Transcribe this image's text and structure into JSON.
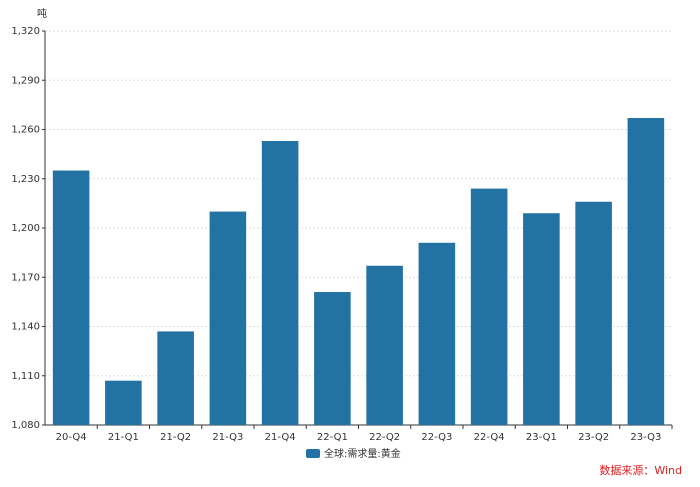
{
  "chart_data": {
    "type": "bar",
    "y_label": "吨",
    "categories": [
      "20-Q4",
      "21-Q1",
      "21-Q2",
      "21-Q3",
      "21-Q4",
      "22-Q1",
      "22-Q2",
      "22-Q3",
      "22-Q4",
      "23-Q1",
      "23-Q2",
      "23-Q3"
    ],
    "series": [
      {
        "name": "全球:需求量:黄金",
        "color": "#2273a3",
        "values": [
          1235,
          1107,
          1137,
          1210,
          1253,
          1161,
          1177,
          1191,
          1224,
          1209,
          1216,
          1267
        ]
      }
    ],
    "ylim": [
      1080,
      1320
    ],
    "yticks": [
      {
        "value": 1080,
        "label": "1,080"
      },
      {
        "value": 1110,
        "label": "1,110"
      },
      {
        "value": 1140,
        "label": "1,140"
      },
      {
        "value": 1170,
        "label": "1,170"
      },
      {
        "value": 1200,
        "label": "1,200"
      },
      {
        "value": 1230,
        "label": "1,230"
      },
      {
        "value": 1260,
        "label": "1,260"
      },
      {
        "value": 1290,
        "label": "1,290"
      },
      {
        "value": 1320,
        "label": "1,320"
      }
    ],
    "grid": true,
    "source": "数据来源：Wind"
  }
}
